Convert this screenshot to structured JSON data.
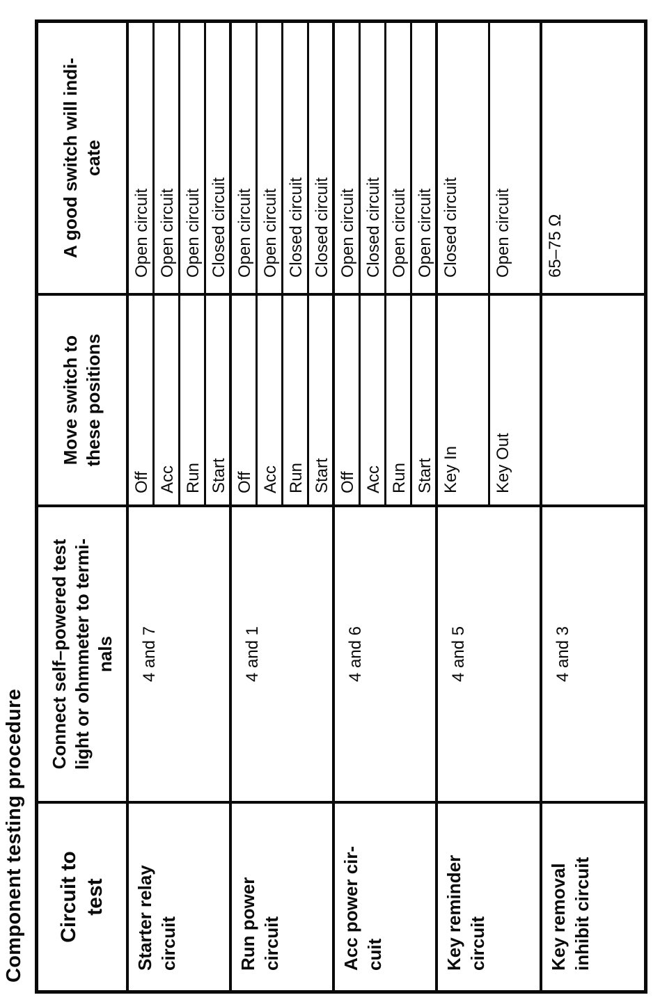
{
  "page_title": "Component testing procedure",
  "colors": {
    "ink": "#0a0a0a",
    "paper": "#ffffff"
  },
  "table": {
    "headers": {
      "circuit": "Circuit to\ntest",
      "terminals": "Connect self–powered test\nlight or ohmmeter to termi-\nnals",
      "positions": "Move switch to\nthese positions",
      "result": "A good switch will indi-\ncate"
    },
    "rows": [
      {
        "circuit": "Starter relay\ncircuit",
        "terminals": "4 and 7",
        "tests": [
          {
            "position": "Off",
            "result": "Open circuit"
          },
          {
            "position": "Acc",
            "result": "Open circuit"
          },
          {
            "position": "Run",
            "result": "Open circuit"
          },
          {
            "position": "Start",
            "result": "Closed circuit"
          }
        ]
      },
      {
        "circuit": "Run power\ncircuit",
        "terminals": "4 and 1",
        "tests": [
          {
            "position": "Off",
            "result": "Open circuit"
          },
          {
            "position": "Acc",
            "result": "Open circuit"
          },
          {
            "position": "Run",
            "result": "Closed circuit"
          },
          {
            "position": "Start",
            "result": "Closed circuit"
          }
        ]
      },
      {
        "circuit": "Acc power cir-\ncuit",
        "terminals": "4 and 6",
        "tests": [
          {
            "position": "Off",
            "result": "Open circuit"
          },
          {
            "position": "Acc",
            "result": "Closed circuit"
          },
          {
            "position": "Run",
            "result": "Open circuit"
          },
          {
            "position": "Start",
            "result": "Open circuit"
          }
        ]
      },
      {
        "circuit": "Key reminder\ncircuit",
        "terminals": "4 and 5",
        "tests": [
          {
            "position": "Key In",
            "result": "Closed circuit"
          },
          {
            "position": "Key Out",
            "result": "Open circuit"
          }
        ]
      },
      {
        "circuit": "Key removal\ninhibit circuit",
        "terminals": "4 and 3",
        "tests": [
          {
            "position": "",
            "result": "65–75 Ω"
          }
        ]
      }
    ]
  }
}
